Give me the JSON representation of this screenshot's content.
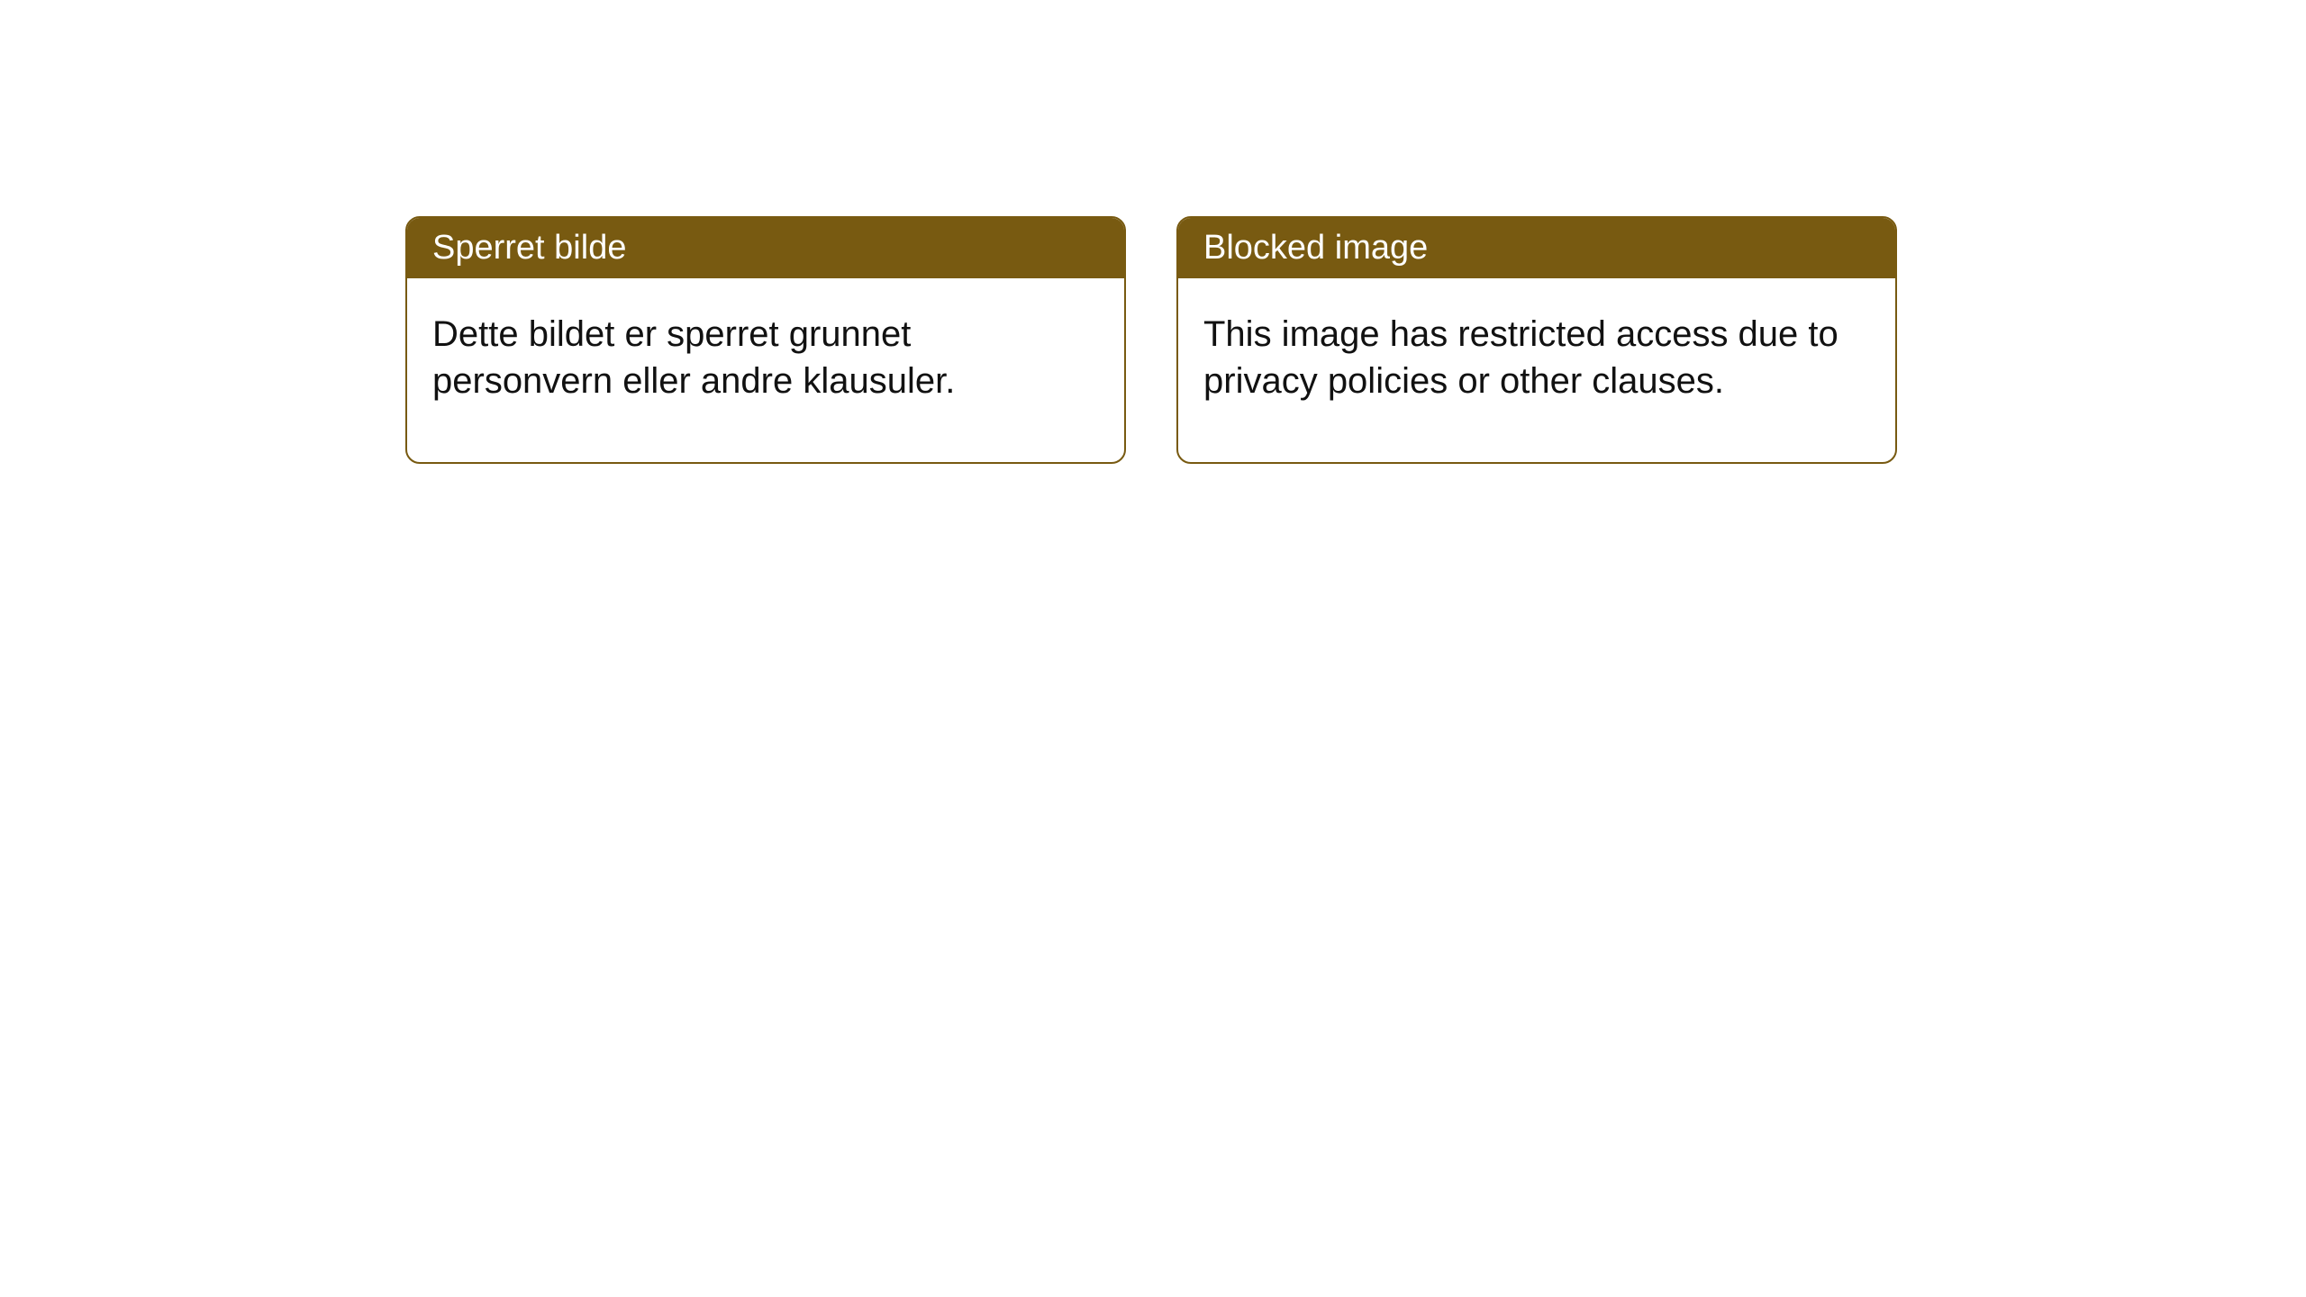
{
  "notices": [
    {
      "title": "Sperret bilde",
      "body": "Dette bildet er sperret grunnet personvern eller andre klausuler."
    },
    {
      "title": "Blocked image",
      "body": "This image has restricted access due to privacy policies or other clauses."
    }
  ],
  "style": {
    "accent_color": "#785a11",
    "border_color": "#785a11",
    "background_color": "#ffffff",
    "title_color": "#ffffff",
    "body_color": "#111111",
    "title_fontsize": 38,
    "body_fontsize": 40,
    "border_radius": 16
  }
}
